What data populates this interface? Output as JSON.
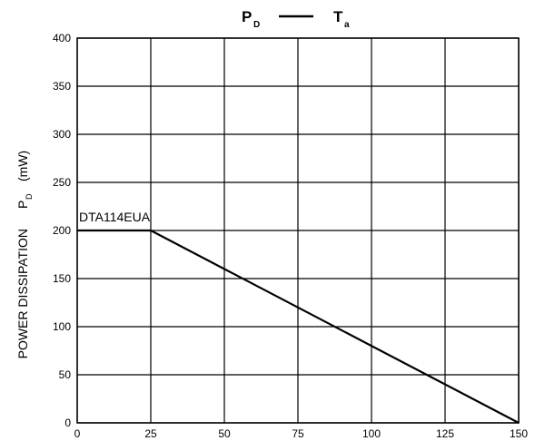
{
  "chart_data": {
    "type": "line",
    "title": {
      "left_symbol": "P",
      "left_subscript": "D",
      "right_symbol": "T",
      "right_subscript": "a"
    },
    "ylabel": {
      "text": "POWER DISSIPATION",
      "symbol": "P",
      "subscript": "D",
      "unit": "(mW)"
    },
    "xlabel": "",
    "xlim": [
      0,
      150
    ],
    "ylim": [
      0,
      400
    ],
    "xticks": [
      0,
      25,
      50,
      75,
      100,
      125,
      150
    ],
    "yticks": [
      0,
      50,
      100,
      150,
      200,
      250,
      300,
      350,
      400
    ],
    "grid": true,
    "series": [
      {
        "name": "DTA114EUA",
        "x": [
          0,
          25,
          150
        ],
        "y": [
          200,
          200,
          0
        ]
      }
    ],
    "line_color": "#000000"
  }
}
